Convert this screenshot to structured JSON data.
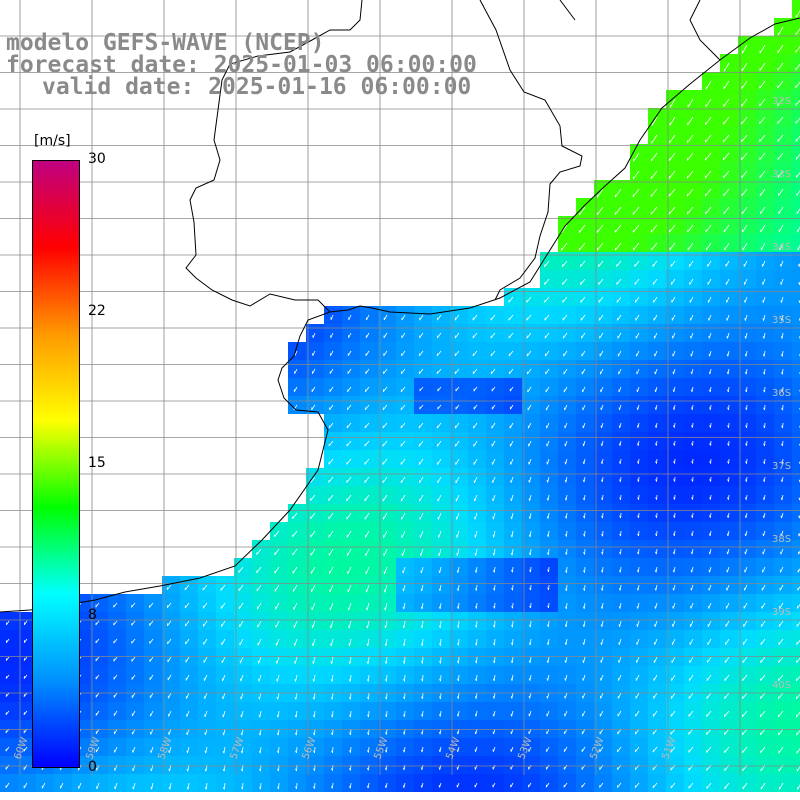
{
  "title": {
    "line1": "modelo GEFS-WAVE (NCEP)",
    "line2": "forecast date: 2025-01-03 06:00:00",
    "line3": "valid date: 2025-01-16 06:00:00"
  },
  "colorbar": {
    "unit": "[m/s]",
    "ticks": [
      "30",
      "22",
      "15",
      "8",
      "0"
    ],
    "tick_values": [
      30,
      22,
      15,
      8,
      0
    ],
    "colors": [
      "#0000ff",
      "#0090ff",
      "#00ffff",
      "#00ff00",
      "#ffff00",
      "#ff9900",
      "#ff0000",
      "#c00080"
    ]
  },
  "map": {
    "lat_labels": [
      "32S",
      "33S",
      "34S",
      "35S",
      "36S",
      "37S",
      "38S",
      "39S",
      "40S"
    ],
    "lon_labels": [
      "60W",
      "59W",
      "58W",
      "57W",
      "56W",
      "55W",
      "54W",
      "53W",
      "52W",
      "51W"
    ],
    "ocean_colors": {
      "low": "#0040ff",
      "mid": "#0099ff",
      "high": "#00ffcc",
      "peak": "#33ff55"
    },
    "coast_color": "#000000",
    "grid_color": "#888888"
  }
}
